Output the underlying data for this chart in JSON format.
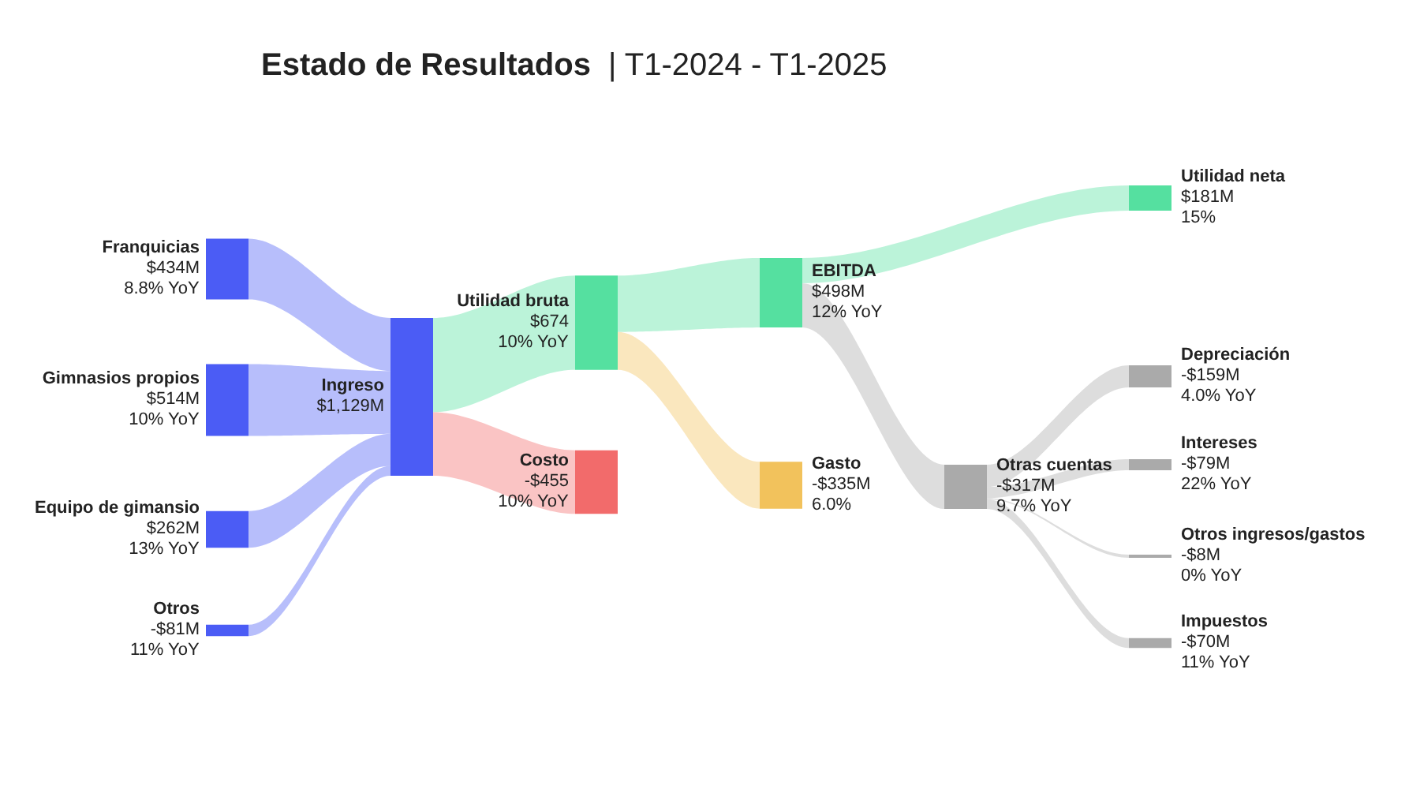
{
  "chart_data": {
    "type": "other",
    "title": "Estado de Resultados",
    "subtitle": "| T1-2024 - T1-2025",
    "categories": [
      "Franquicias",
      "Gimnasios propios",
      "Equipo de gimansio",
      "Otros",
      "Ingreso",
      "Utilidad bruta",
      "Costo",
      "EBITDA",
      "Gasto",
      "Utilidad neta",
      "Otras cuentas",
      "Depreciación",
      "Intereses",
      "Otros ingresos/gastos",
      "Impuestos"
    ],
    "values": [
      434,
      514,
      262,
      -81,
      1129,
      674,
      -455,
      498,
      -335,
      181,
      -317,
      -159,
      -79,
      -8,
      -70
    ],
    "value_labels": [
      "$434M",
      "$514M",
      "$262M",
      "-$81M",
      "$1,129M",
      "$674",
      "-$455",
      "$498M",
      "-$335M",
      "$181M",
      "-$317M",
      "-$159M",
      "-$79M",
      "-$8M",
      "-$70M"
    ],
    "annotations": [
      "8.8% YoY",
      "10% YoY",
      "13% YoY",
      "11% YoY",
      "10% YoY",
      "10% YoY",
      "12% YoY",
      "6.0%",
      "15%",
      "9.7% YoY",
      "4.0% YoY",
      "22% YoY",
      "0% YoY",
      "11% YoY"
    ],
    "colors": [
      "#4b5cf5",
      "#4b5cf5",
      "#4b5cf5",
      "#4b5cf5",
      "#4b5cf5",
      "#55e0a0",
      "#f26b6b",
      "#55e0a0",
      "#f2c25c",
      "#55e0a0",
      "#aaaaaa",
      "#aaaaaa",
      "#aaaaaa",
      "#aaaaaa",
      "#aaaaaa"
    ]
  }
}
